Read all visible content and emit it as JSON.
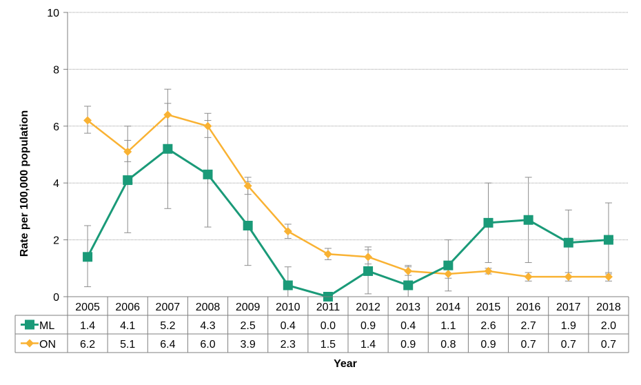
{
  "chart_data": {
    "type": "line",
    "categories": [
      "2005",
      "2006",
      "2007",
      "2008",
      "2009",
      "2010",
      "2011",
      "2012",
      "2013",
      "2014",
      "2015",
      "2016",
      "2017",
      "2018"
    ],
    "series": [
      {
        "name": "ML",
        "color": "#1a9a78",
        "marker": "square",
        "values": [
          1.4,
          4.1,
          5.2,
          4.3,
          2.5,
          0.4,
          0.0,
          0.9,
          0.4,
          1.1,
          2.6,
          2.7,
          1.9,
          2.0
        ],
        "labels": [
          "1.4",
          "4.1",
          "5.2",
          "4.3",
          "2.5",
          "0.4",
          "0.0",
          "0.9",
          "0.4",
          "1.1",
          "2.6",
          "2.7",
          "1.9",
          "2.0"
        ],
        "ci_low": [
          0.35,
          2.25,
          3.1,
          2.45,
          1.1,
          0.0,
          0.0,
          0.1,
          0.0,
          0.2,
          1.2,
          1.2,
          0.85,
          0.8
        ],
        "ci_high": [
          2.5,
          6.0,
          7.3,
          6.2,
          4.05,
          1.05,
          0.0,
          1.75,
          1.1,
          2.0,
          4.0,
          4.2,
          3.05,
          3.3
        ]
      },
      {
        "name": "ON",
        "color": "#f9b233",
        "marker": "diamond",
        "values": [
          6.2,
          5.1,
          6.4,
          6.0,
          3.9,
          2.3,
          1.5,
          1.4,
          0.9,
          0.8,
          0.9,
          0.7,
          0.7,
          0.7
        ],
        "labels": [
          "6.2",
          "5.1",
          "6.4",
          "6.0",
          "3.9",
          "2.3",
          "1.5",
          "1.4",
          "0.9",
          "0.8",
          "0.9",
          "0.7",
          "0.7",
          "0.7"
        ],
        "ci_low": [
          5.75,
          4.75,
          6.0,
          5.6,
          3.6,
          2.05,
          1.3,
          1.15,
          0.75,
          0.65,
          0.8,
          0.55,
          0.55,
          0.55
        ],
        "ci_high": [
          6.7,
          5.5,
          6.8,
          6.45,
          4.2,
          2.55,
          1.7,
          1.65,
          1.05,
          0.95,
          1.0,
          0.85,
          0.85,
          0.85
        ]
      }
    ],
    "ylabel": "Rate per 100,000 population",
    "xlabel": "Year",
    "ylim": [
      0,
      10
    ],
    "yticks": [
      "0",
      "2",
      "4",
      "6",
      "8",
      "10"
    ],
    "grid": true,
    "legend": "data-table"
  }
}
